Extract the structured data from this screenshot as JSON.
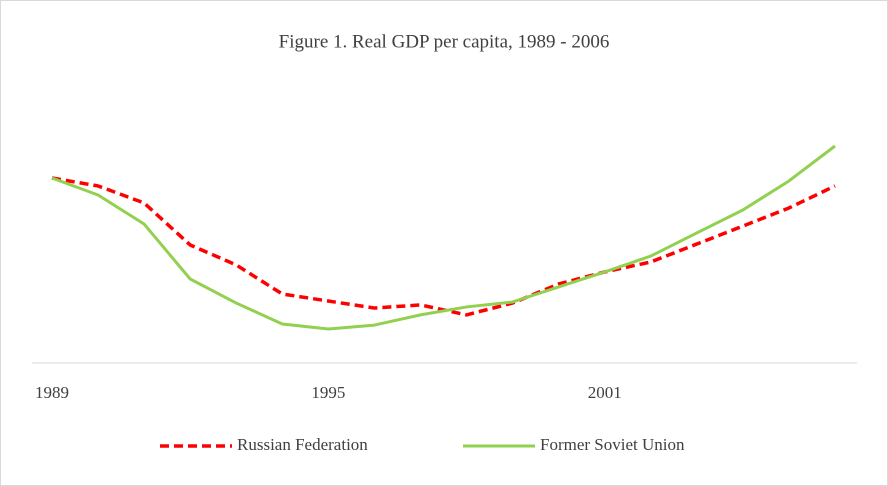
{
  "chart_data": {
    "type": "line",
    "title": "Figure 1. Real GDP per capita, 1989 - 2006",
    "x": [
      1989,
      1990,
      1991,
      1992,
      1993,
      1994,
      1995,
      1996,
      1997,
      1998,
      1999,
      2000,
      2001,
      2002,
      2003,
      2004,
      2005,
      2006
    ],
    "xlim": [
      1989,
      2006
    ],
    "xticks": [
      1989,
      1995,
      2001
    ],
    "ylim": [
      0,
      120
    ],
    "legend": "bottom",
    "series": [
      {
        "name": "Russian Federation",
        "color": "#ff0000",
        "dashed": true,
        "values": [
          100,
          95.7,
          86.5,
          63.8,
          53,
          37.3,
          33.5,
          29.7,
          31.4,
          26,
          32.4,
          42.7,
          49.2,
          54.6,
          64.3,
          74,
          83.8,
          95.7
        ]
      },
      {
        "name": "Former Soviet Union",
        "color": "#92d050",
        "dashed": false,
        "values": [
          100,
          90.8,
          75.1,
          45.4,
          32.4,
          21.1,
          18.4,
          20.5,
          26,
          30.3,
          33,
          41.1,
          49.2,
          57.8,
          70.3,
          82.7,
          98.4,
          117.3
        ]
      }
    ]
  }
}
